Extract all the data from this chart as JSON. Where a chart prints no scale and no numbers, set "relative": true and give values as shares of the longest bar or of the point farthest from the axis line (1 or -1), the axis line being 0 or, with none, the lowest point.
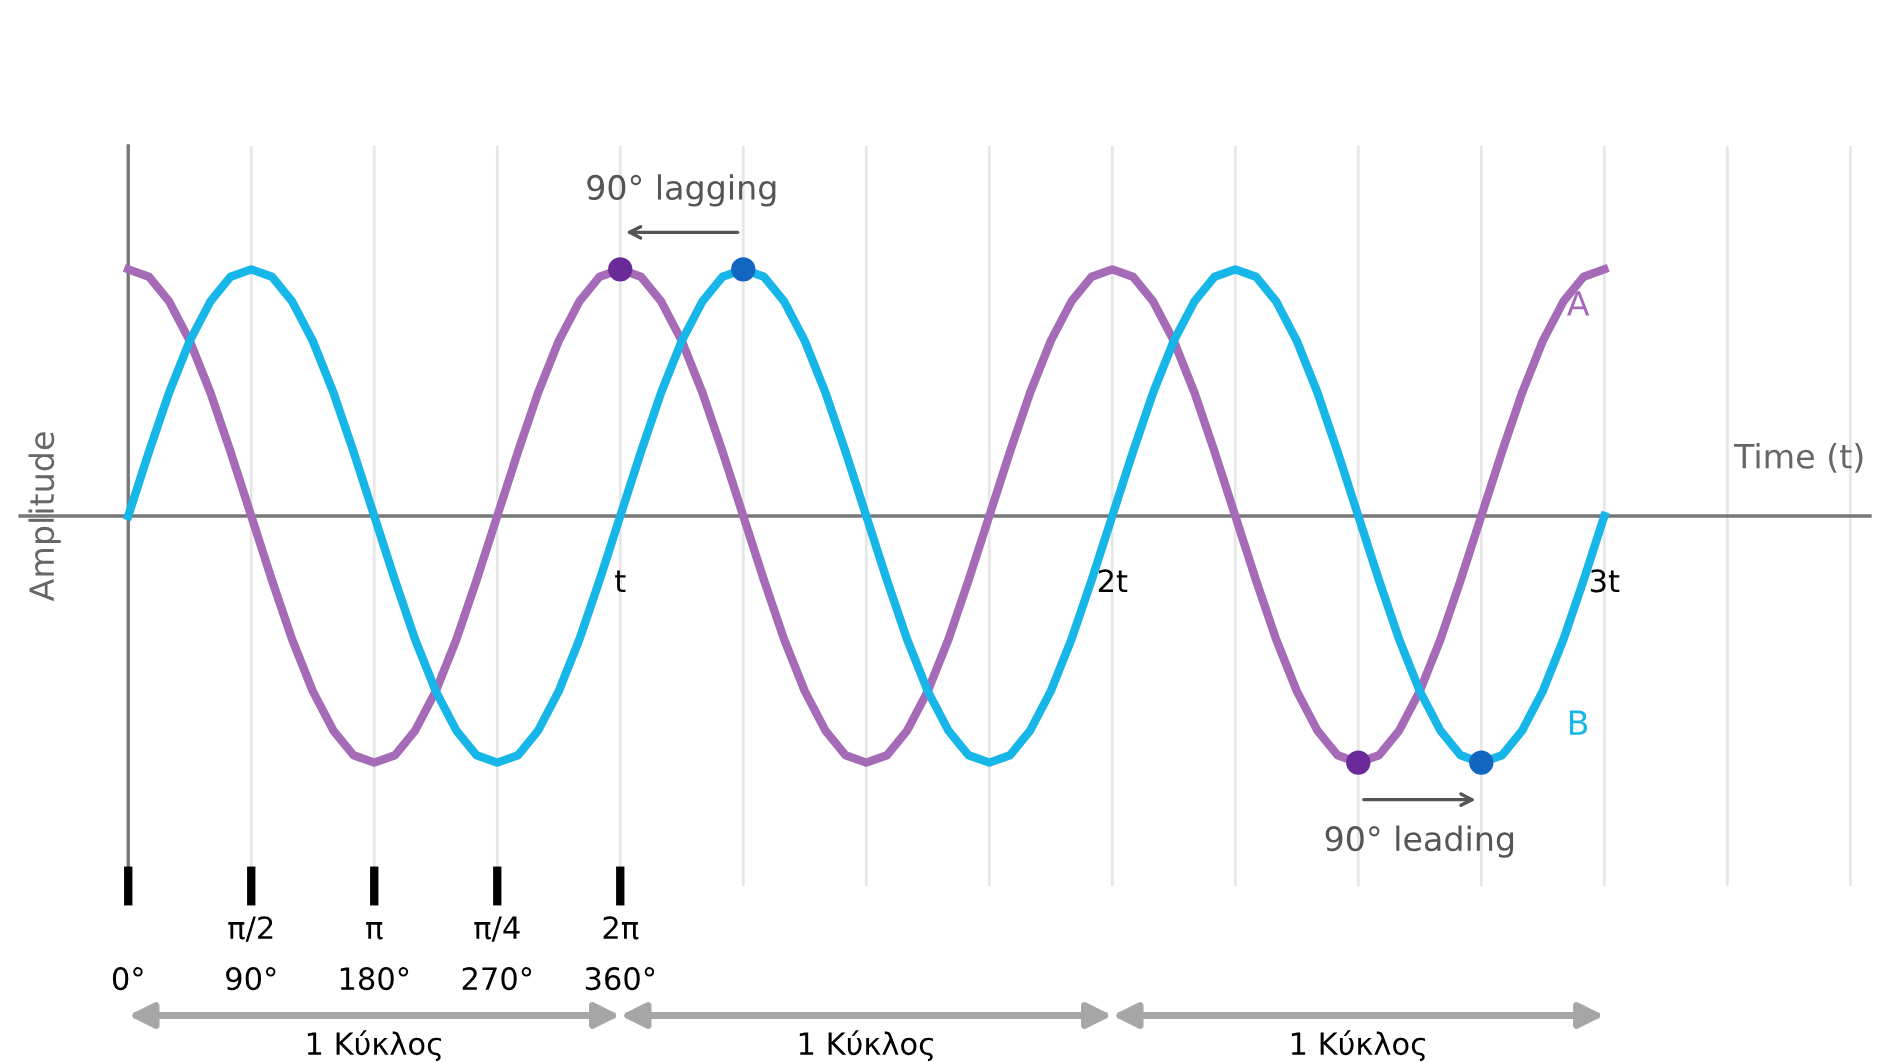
{
  "chart_data": {
    "type": "line",
    "relative": true,
    "xlabel": "Time (t)",
    "ylabel": "Amplitude",
    "x": [
      0,
      0.042,
      0.083,
      0.125,
      0.167,
      0.208,
      0.25,
      0.292,
      0.333,
      0.375,
      0.417,
      0.458,
      0.5,
      0.542,
      0.583,
      0.625,
      0.667,
      0.708,
      0.75,
      0.792,
      0.833,
      0.875,
      0.917,
      0.958,
      1,
      1.042,
      1.083,
      1.125,
      1.167,
      1.208,
      1.25,
      1.292,
      1.333,
      1.375,
      1.417,
      1.458,
      1.5,
      1.542,
      1.583,
      1.625,
      1.667,
      1.708,
      1.75,
      1.792,
      1.833,
      1.875,
      1.917,
      1.958,
      2,
      2.042,
      2.083,
      2.125,
      2.167,
      2.208,
      2.25,
      2.292,
      2.333,
      2.375,
      2.417,
      2.458,
      2.5,
      2.542,
      2.583,
      2.625,
      2.667,
      2.708,
      2.75,
      2.792,
      2.833,
      2.875,
      2.917,
      2.958,
      3
    ],
    "series": [
      {
        "name": "A",
        "color": "#a56bb6",
        "values": [
          1,
          0.97,
          0.87,
          0.71,
          0.5,
          0.26,
          0,
          -0.26,
          -0.5,
          -0.71,
          -0.87,
          -0.97,
          -1,
          -0.97,
          -0.87,
          -0.71,
          -0.5,
          -0.26,
          0,
          0.26,
          0.5,
          0.71,
          0.87,
          0.97,
          1,
          0.97,
          0.87,
          0.71,
          0.5,
          0.26,
          0,
          -0.26,
          -0.5,
          -0.71,
          -0.87,
          -0.97,
          -1,
          -0.97,
          -0.87,
          -0.71,
          -0.5,
          -0.26,
          0,
          0.26,
          0.5,
          0.71,
          0.87,
          0.97,
          1,
          0.97,
          0.87,
          0.71,
          0.5,
          0.26,
          0,
          -0.26,
          -0.5,
          -0.71,
          -0.87,
          -0.97,
          -1,
          -0.97,
          -0.87,
          -0.71,
          -0.5,
          -0.26,
          0,
          0.26,
          0.5,
          0.71,
          0.87,
          0.97,
          1
        ]
      },
      {
        "name": "B",
        "color": "#17b6e8",
        "values": [
          0,
          0.26,
          0.5,
          0.71,
          0.87,
          0.97,
          1,
          0.97,
          0.87,
          0.71,
          0.5,
          0.26,
          0,
          -0.26,
          -0.5,
          -0.71,
          -0.87,
          -0.97,
          -1,
          -0.97,
          -0.87,
          -0.71,
          -0.5,
          -0.26,
          0,
          0.26,
          0.5,
          0.71,
          0.87,
          0.97,
          1,
          0.97,
          0.87,
          0.71,
          0.5,
          0.26,
          0,
          -0.26,
          -0.5,
          -0.71,
          -0.87,
          -0.97,
          -1,
          -0.97,
          -0.87,
          -0.71,
          -0.5,
          -0.26,
          0,
          0.26,
          0.5,
          0.71,
          0.87,
          0.97,
          1,
          0.97,
          0.87,
          0.71,
          0.5,
          0.26,
          0,
          -0.26,
          -0.5,
          -0.71,
          -0.87,
          -0.97,
          -1,
          -0.97,
          -0.87,
          -0.71,
          -0.5,
          -0.26,
          0
        ]
      },
      {
        "type": "scatter",
        "marker": "circle",
        "color": "#6b2a99",
        "x": [
          1,
          2.5
        ],
        "values": [
          1,
          -1
        ]
      },
      {
        "type": "scatter",
        "marker": "circle",
        "color": "#1266c0",
        "x": [
          1.25,
          2.75
        ],
        "values": [
          1,
          -1
        ]
      }
    ],
    "xlim": [
      -0.22,
      3.54
    ],
    "xticks": [
      {
        "value": 0,
        "label": null
      },
      {
        "value": 0.25,
        "label": null
      },
      {
        "value": 0.5,
        "label": null
      },
      {
        "value": 0.75,
        "label": null
      },
      {
        "value": 1,
        "label": "t"
      },
      {
        "value": 1.25,
        "label": null
      },
      {
        "value": 1.5,
        "label": null
      },
      {
        "value": 1.75,
        "label": null
      },
      {
        "value": 2,
        "label": "2t"
      },
      {
        "value": 2.25,
        "label": null
      },
      {
        "value": 2.5,
        "label": null
      },
      {
        "value": 2.75,
        "label": null
      },
      {
        "value": 3,
        "label": "3t"
      },
      {
        "value": 3.25,
        "label": null
      },
      {
        "value": 3.5,
        "label": null
      }
    ],
    "x2lim": [
      -79.2,
      1274.4
    ],
    "x2ticks": [
      {
        "value": 0,
        "label": "0°"
      },
      {
        "value": 90,
        "label": "90°"
      },
      {
        "value": 180,
        "label": "180°"
      },
      {
        "value": 270,
        "label": "270°"
      },
      {
        "value": 360,
        "label": "360°"
      }
    ],
    "grid": "x",
    "annotations": [
      {
        "text": "90° lagging",
        "x": 1,
        "y": 1
      },
      {
        "text": "90° leading",
        "x": 2.75,
        "y": -1
      },
      "π/2",
      "π",
      "π/4",
      "2π",
      "1 Κύκλος",
      "1 Κύκλος",
      "1 Κύκλος"
    ]
  }
}
